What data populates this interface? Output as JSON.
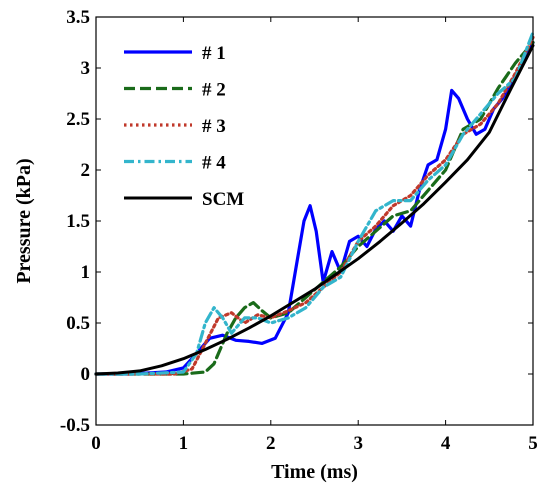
{
  "chart_data": {
    "type": "line",
    "xlabel": "Time (ms)",
    "ylabel": "Pressure (kPa)",
    "xlim": [
      0,
      5
    ],
    "ylim": [
      -0.5,
      3.5
    ],
    "xticks": [
      {
        "v": 0,
        "label": "0"
      },
      {
        "v": 1,
        "label": "1"
      },
      {
        "v": 2,
        "label": "2"
      },
      {
        "v": 3,
        "label": "3"
      },
      {
        "v": 4,
        "label": "4"
      },
      {
        "v": 5,
        "label": "5"
      }
    ],
    "yticks": [
      {
        "v": -0.5,
        "label": "-0.5"
      },
      {
        "v": 0,
        "label": "0"
      },
      {
        "v": 0.5,
        "label": "0.5"
      },
      {
        "v": 1,
        "label": "1"
      },
      {
        "v": 1.5,
        "label": "1.5"
      },
      {
        "v": 2,
        "label": "2"
      },
      {
        "v": 2.5,
        "label": "2.5"
      },
      {
        "v": 3,
        "label": "3"
      },
      {
        "v": 3.5,
        "label": "3.5"
      }
    ],
    "grid": false,
    "legend_position": "top-left",
    "series": [
      {
        "name": "# 1",
        "color": "#0000ff",
        "dash": "solid",
        "x": [
          0,
          0.4,
          0.8,
          1.0,
          1.15,
          1.3,
          1.45,
          1.6,
          1.75,
          1.9,
          2.05,
          2.2,
          2.3,
          2.38,
          2.45,
          2.52,
          2.6,
          2.7,
          2.8,
          2.9,
          3.0,
          3.1,
          3.2,
          3.3,
          3.4,
          3.5,
          3.6,
          3.7,
          3.8,
          3.9,
          4.0,
          4.07,
          4.15,
          4.25,
          4.35,
          4.45,
          4.55,
          4.65,
          4.75,
          4.85,
          4.95,
          5.0
        ],
        "y": [
          0,
          0,
          0.02,
          0.06,
          0.2,
          0.35,
          0.38,
          0.33,
          0.32,
          0.3,
          0.35,
          0.6,
          1.1,
          1.5,
          1.65,
          1.4,
          0.9,
          1.2,
          1.0,
          1.3,
          1.35,
          1.25,
          1.42,
          1.5,
          1.4,
          1.55,
          1.45,
          1.8,
          2.05,
          2.1,
          2.4,
          2.78,
          2.7,
          2.5,
          2.35,
          2.4,
          2.6,
          2.7,
          2.85,
          3.0,
          3.15,
          3.25
        ]
      },
      {
        "name": "# 2",
        "color": "#1a6b1a",
        "dash": "dashed",
        "x": [
          0,
          0.5,
          1.0,
          1.25,
          1.35,
          1.5,
          1.6,
          1.7,
          1.8,
          1.9,
          2.0,
          2.2,
          2.4,
          2.6,
          2.8,
          3.0,
          3.2,
          3.4,
          3.6,
          3.8,
          4.0,
          4.2,
          4.4,
          4.6,
          4.8,
          5.0
        ],
        "y": [
          0,
          0,
          0,
          0.02,
          0.1,
          0.4,
          0.55,
          0.65,
          0.7,
          0.62,
          0.55,
          0.6,
          0.75,
          0.9,
          1.05,
          1.25,
          1.4,
          1.55,
          1.6,
          1.8,
          2.0,
          2.4,
          2.5,
          2.8,
          3.05,
          3.25
        ]
      },
      {
        "name": "# 3",
        "color": "#c0392b",
        "dash": "dotted",
        "x": [
          0,
          0.5,
          0.9,
          1.1,
          1.25,
          1.4,
          1.55,
          1.7,
          1.85,
          2.0,
          2.2,
          2.4,
          2.6,
          2.8,
          3.0,
          3.2,
          3.4,
          3.6,
          3.8,
          4.0,
          4.2,
          4.4,
          4.6,
          4.8,
          5.0
        ],
        "y": [
          0,
          0,
          0,
          0.05,
          0.3,
          0.55,
          0.6,
          0.5,
          0.58,
          0.55,
          0.62,
          0.7,
          0.85,
          1.0,
          1.3,
          1.45,
          1.65,
          1.75,
          1.95,
          2.1,
          2.35,
          2.45,
          2.65,
          2.95,
          3.3
        ]
      },
      {
        "name": "# 4",
        "color": "#33b5cc",
        "dash": "dashdot",
        "x": [
          0,
          0.5,
          1.0,
          1.15,
          1.25,
          1.35,
          1.45,
          1.55,
          1.7,
          1.85,
          2.0,
          2.2,
          2.4,
          2.6,
          2.8,
          3.0,
          3.2,
          3.4,
          3.6,
          3.8,
          4.0,
          4.2,
          4.4,
          4.6,
          4.8,
          5.0
        ],
        "y": [
          0,
          0,
          0.02,
          0.2,
          0.5,
          0.65,
          0.55,
          0.4,
          0.55,
          0.55,
          0.5,
          0.55,
          0.65,
          0.85,
          0.95,
          1.3,
          1.6,
          1.7,
          1.7,
          1.9,
          2.05,
          2.35,
          2.55,
          2.75,
          2.9,
          3.35
        ]
      },
      {
        "name": "SCM",
        "color": "#000000",
        "dash": "solid",
        "x": [
          0,
          0.25,
          0.5,
          0.75,
          1.0,
          1.25,
          1.5,
          1.75,
          2.0,
          2.25,
          2.5,
          2.75,
          3.0,
          3.25,
          3.5,
          3.75,
          4.0,
          4.25,
          4.5,
          4.75,
          5.0
        ],
        "y": [
          0,
          0.01,
          0.03,
          0.08,
          0.15,
          0.24,
          0.34,
          0.45,
          0.57,
          0.7,
          0.83,
          0.98,
          1.13,
          1.3,
          1.48,
          1.67,
          1.88,
          2.1,
          2.37,
          2.8,
          3.22
        ]
      }
    ]
  }
}
